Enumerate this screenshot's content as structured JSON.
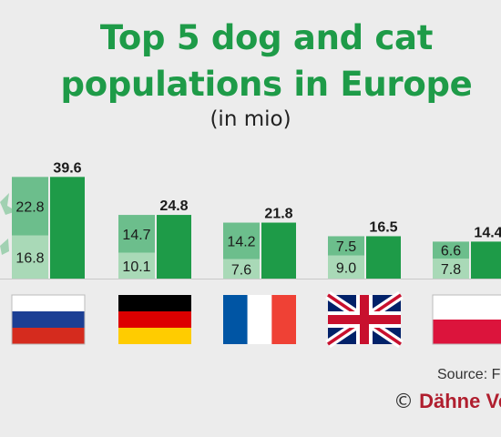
{
  "title_lines": [
    "Top 5 dog and cat",
    "populations in Europe"
  ],
  "subtitle": "(in mio)",
  "source": "Source: F",
  "copyright": {
    "symbol": "©",
    "brand": "Dähne Ve"
  },
  "colors": {
    "background": "#ececec",
    "title": "#1e9b48",
    "total_bar": "#1e9b48",
    "upper_segment": "#6cbe8c",
    "lower_segment": "#a9d9b7",
    "brand": "#b01e2e"
  },
  "flags": [
    "russia-flag-icon",
    "germany-flag-icon",
    "france-flag-icon",
    "uk-flag-icon",
    "poland-flag-icon"
  ],
  "chart_data": {
    "type": "bar",
    "categories": [
      "Russia",
      "Germany",
      "France",
      "United Kingdom",
      "Poland"
    ],
    "series": [
      {
        "values": [
          16.8,
          10.1,
          7.6,
          9.0,
          7.8
        ]
      },
      {
        "values": [
          22.8,
          14.7,
          14.2,
          7.5,
          6.6
        ]
      },
      {
        "values": [
          39.6,
          24.8,
          21.8,
          16.5,
          14.4
        ]
      }
    ],
    "stacked_series": [
      0,
      1
    ],
    "total_series": 2,
    "title": "Top 5 dog and cat populations in Europe",
    "subtitle": "(in mio)",
    "ylim": [
      0,
      40
    ],
    "grid": false
  }
}
